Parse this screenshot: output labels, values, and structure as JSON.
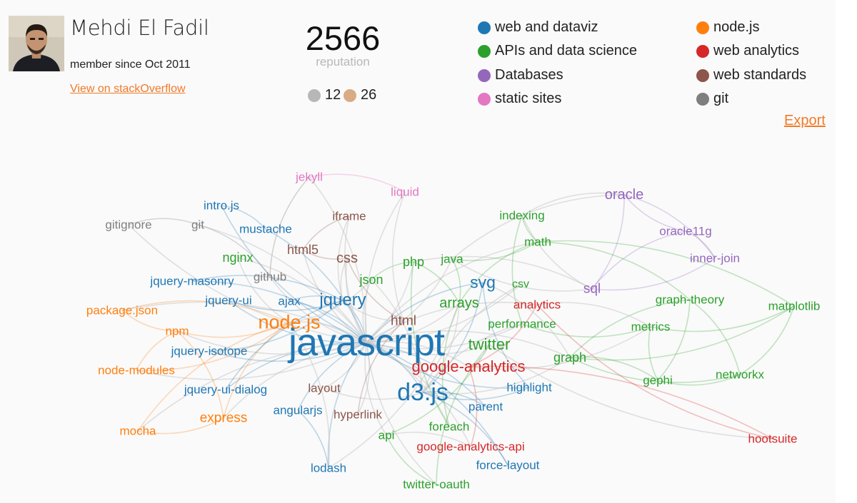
{
  "profile": {
    "name": "Mehdi El Fadil",
    "member_since": "member since Oct 2011",
    "link_label": "View on stackOverflow"
  },
  "reputation": {
    "value": "2566",
    "label": "reputation"
  },
  "badges": [
    {
      "count": "12",
      "kind": "silver",
      "color": "#b7b7b7"
    },
    {
      "count": "26",
      "kind": "bronze",
      "color": "#d8ab84"
    }
  ],
  "legend": [
    {
      "label": "web and dataviz",
      "color": "#1f77b4",
      "key": "web"
    },
    {
      "label": "APIs and data science",
      "color": "#2ca02c",
      "key": "api"
    },
    {
      "label": "Databases",
      "color": "#9467bd",
      "key": "db"
    },
    {
      "label": "static sites",
      "color": "#e377c2",
      "key": "static"
    },
    {
      "label": "node.js",
      "color": "#ff7f0e",
      "key": "node"
    },
    {
      "label": "web analytics",
      "color": "#d62728",
      "key": "analytics"
    },
    {
      "label": "web standards",
      "color": "#8c564b",
      "key": "standards"
    },
    {
      "label": "git",
      "color": "#7f7f7f",
      "key": "git"
    }
  ],
  "export_label": "Export",
  "graph": {
    "tags": [
      {
        "text": "javascript",
        "group": "web"
      },
      {
        "text": "d3.js",
        "group": "web"
      },
      {
        "text": "node.js",
        "group": "node"
      },
      {
        "text": "jquery",
        "group": "web"
      },
      {
        "text": "svg",
        "group": "web"
      },
      {
        "text": "twitter",
        "group": "api"
      },
      {
        "text": "google-analytics",
        "group": "analytics"
      },
      {
        "text": "arrays",
        "group": "api"
      },
      {
        "text": "oracle",
        "group": "db"
      },
      {
        "text": "css",
        "group": "standards"
      },
      {
        "text": "html",
        "group": "standards"
      },
      {
        "text": "html5",
        "group": "standards"
      },
      {
        "text": "php",
        "group": "api"
      },
      {
        "text": "json",
        "group": "api"
      },
      {
        "text": "sql",
        "group": "db"
      },
      {
        "text": "express",
        "group": "node"
      },
      {
        "text": "nginx",
        "group": "api"
      },
      {
        "text": "graph",
        "group": "api"
      },
      {
        "text": "jekyll",
        "group": "static"
      },
      {
        "text": "liquid",
        "group": "static"
      },
      {
        "text": "intro.js",
        "group": "web"
      },
      {
        "text": "gitignore",
        "group": "git"
      },
      {
        "text": "git",
        "group": "git"
      },
      {
        "text": "mustache",
        "group": "web"
      },
      {
        "text": "iframe",
        "group": "standards"
      },
      {
        "text": "indexing",
        "group": "api"
      },
      {
        "text": "oracle11g",
        "group": "db"
      },
      {
        "text": "math",
        "group": "api"
      },
      {
        "text": "java",
        "group": "api"
      },
      {
        "text": "inner-join",
        "group": "db"
      },
      {
        "text": "jquery-masonry",
        "group": "web"
      },
      {
        "text": "github",
        "group": "git"
      },
      {
        "text": "csv",
        "group": "api"
      },
      {
        "text": "jquery-ui",
        "group": "web"
      },
      {
        "text": "ajax",
        "group": "web"
      },
      {
        "text": "analytics",
        "group": "analytics"
      },
      {
        "text": "graph-theory",
        "group": "api"
      },
      {
        "text": "matplotlib",
        "group": "api"
      },
      {
        "text": "package.json",
        "group": "node"
      },
      {
        "text": "performance",
        "group": "api"
      },
      {
        "text": "metrics",
        "group": "api"
      },
      {
        "text": "npm",
        "group": "node"
      },
      {
        "text": "jquery-isotope",
        "group": "web"
      },
      {
        "text": "node-modules",
        "group": "node"
      },
      {
        "text": "networkx",
        "group": "api"
      },
      {
        "text": "gephi",
        "group": "api"
      },
      {
        "text": "highlight",
        "group": "web"
      },
      {
        "text": "jquery-ui-dialog",
        "group": "web"
      },
      {
        "text": "layout",
        "group": "standards"
      },
      {
        "text": "parent",
        "group": "web"
      },
      {
        "text": "angularjs",
        "group": "web"
      },
      {
        "text": "hyperlink",
        "group": "standards"
      },
      {
        "text": "foreach",
        "group": "api"
      },
      {
        "text": "mocha",
        "group": "node"
      },
      {
        "text": "api",
        "group": "api"
      },
      {
        "text": "hootsuite",
        "group": "analytics"
      },
      {
        "text": "google-analytics-api",
        "group": "analytics"
      },
      {
        "text": "force-layout",
        "group": "web"
      },
      {
        "text": "lodash",
        "group": "web"
      },
      {
        "text": "twitter-oauth",
        "group": "api"
      }
    ]
  }
}
